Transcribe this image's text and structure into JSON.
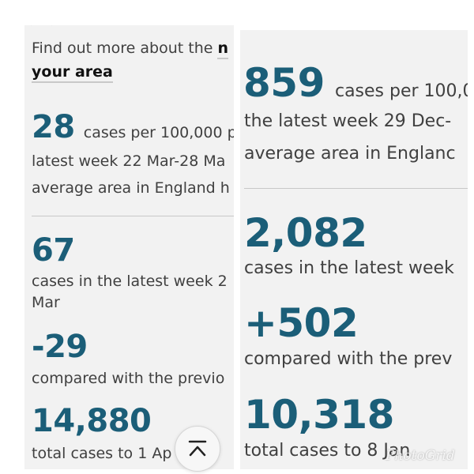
{
  "left_panel": {
    "intro_text": "Find out more about the",
    "intro_link_tail": "n",
    "area_link": "your area",
    "rate": {
      "value": "28",
      "unit_text": "cases per 100,000 p",
      "line2": "latest week 22 Mar-28 Ma",
      "line3": "average area in England h"
    },
    "weekly": {
      "value": "67",
      "line1": "cases in the latest week 2",
      "line2": "Mar"
    },
    "change": {
      "value": "-29",
      "text": "compared with the previo"
    },
    "total": {
      "value": "14,880",
      "text": "total cases to 1 Ap"
    }
  },
  "right_panel": {
    "rate": {
      "value": "859",
      "unit_text": "cases per 100,0",
      "line2": "the latest week 29 Dec-",
      "line3": "average area in Englanc"
    },
    "weekly": {
      "value": "2,082",
      "text": "cases in the latest week"
    },
    "change": {
      "value": "+502",
      "text": "compared with the prev"
    },
    "total": {
      "value": "10,318",
      "text": "total cases to 8 Jan"
    }
  },
  "scroll_top_icon": "chevron-up-bar-icon",
  "watermark": "PhotoGrid",
  "colors": {
    "accent": "#1b5e78",
    "panel_bg": "#f2f2f2",
    "text": "#404040"
  }
}
